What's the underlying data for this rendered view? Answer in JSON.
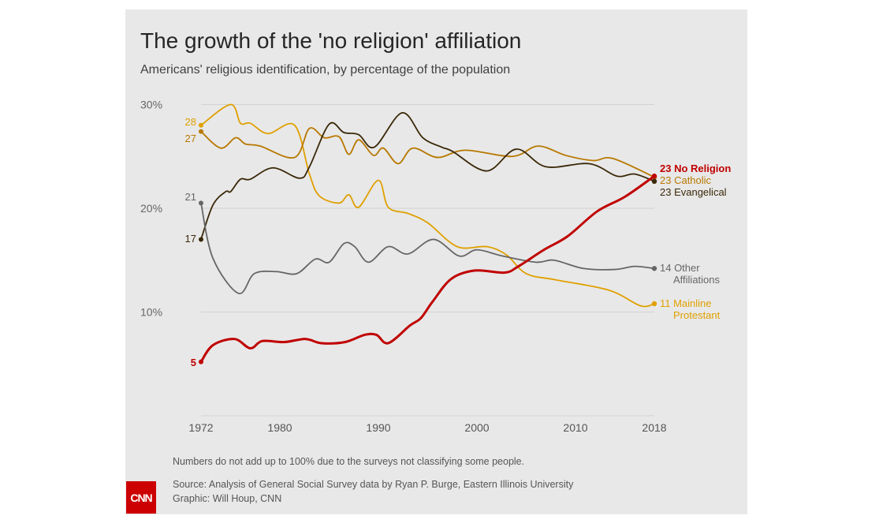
{
  "title": "The growth of the 'no religion' affiliation",
  "subtitle": "Americans' religious identification, by percentage of the population",
  "note": "Numbers do not add up to 100% due to the surveys not classifying some people.",
  "source": "Source: Analysis of General Social Survey data by Ryan P. Burge, Eastern Illinois University",
  "graphic": "Graphic: Will Houp, CNN",
  "logo": "CNN",
  "chart_data": {
    "type": "line",
    "title": "The growth of the 'no religion' affiliation",
    "xlim": [
      1972,
      2018
    ],
    "ylim": [
      0,
      30
    ],
    "x_ticks": [
      "1972",
      "1980",
      "1990",
      "2000",
      "2010",
      "2018"
    ],
    "y_ticks": [
      {
        "v": 10,
        "label": "10%"
      },
      {
        "v": 20,
        "label": "20%"
      },
      {
        "v": 30,
        "label": "30%"
      }
    ],
    "grid": true,
    "series": [
      {
        "name": "Mainline Protestant",
        "color": "#e0a000",
        "start_label": "28",
        "end_label": [
          "11 Mainline",
          "Protestant"
        ],
        "points": [
          [
            1972,
            28.0
          ],
          [
            1975,
            30.0
          ],
          [
            1976,
            28.2
          ],
          [
            1977,
            28.2
          ],
          [
            1978.8,
            27.2
          ],
          [
            1981.5,
            28.0
          ],
          [
            1983,
            23.3
          ],
          [
            1984,
            21.2
          ],
          [
            1986,
            20.5
          ],
          [
            1987,
            21.3
          ],
          [
            1988,
            20.1
          ],
          [
            1990,
            22.7
          ],
          [
            1991,
            20.1
          ],
          [
            1993,
            19.5
          ],
          [
            1995,
            18.6
          ],
          [
            1998,
            16.3
          ],
          [
            2001,
            16.3
          ],
          [
            2003,
            15.5
          ],
          [
            2005,
            13.7
          ],
          [
            2008,
            13.1
          ],
          [
            2013.4,
            12.1
          ],
          [
            2016.6,
            10.6
          ],
          [
            2018,
            10.8
          ]
        ]
      },
      {
        "name": "Catholic",
        "color": "#b87800",
        "start_label": "27",
        "end_label": [
          "23 Catholic"
        ],
        "points": [
          [
            1972,
            27.4
          ],
          [
            1974,
            25.8
          ],
          [
            1975.5,
            26.8
          ],
          [
            1976.5,
            26.2
          ],
          [
            1978,
            26.0
          ],
          [
            1981.5,
            24.9
          ],
          [
            1983,
            27.7
          ],
          [
            1984.5,
            26.8
          ],
          [
            1986,
            26.9
          ],
          [
            1987,
            25.2
          ],
          [
            1988,
            26.6
          ],
          [
            1989.5,
            25.1
          ],
          [
            1990.5,
            25.8
          ],
          [
            1992,
            24.3
          ],
          [
            1993.5,
            25.8
          ],
          [
            1996,
            24.9
          ],
          [
            1998.8,
            25.6
          ],
          [
            2003.6,
            25.0
          ],
          [
            2006.2,
            26.0
          ],
          [
            2009,
            25.1
          ],
          [
            2011.8,
            24.6
          ],
          [
            2013.8,
            24.8
          ],
          [
            2018,
            23.0
          ]
        ]
      },
      {
        "name": "Evangelical",
        "color": "#3a2808",
        "start_label": "17",
        "end_label": [
          "23 Evangelical"
        ],
        "points": [
          [
            1972,
            17.0
          ],
          [
            1973.2,
            20.3
          ],
          [
            1974.5,
            21.6
          ],
          [
            1975,
            21.6
          ],
          [
            1976,
            22.8
          ],
          [
            1977,
            22.8
          ],
          [
            1979.3,
            23.9
          ],
          [
            1982,
            22.9
          ],
          [
            1983,
            24.0
          ],
          [
            1985,
            28.1
          ],
          [
            1986.5,
            27.3
          ],
          [
            1988,
            27.1
          ],
          [
            1989.6,
            25.9
          ],
          [
            1992.4,
            29.2
          ],
          [
            1994.5,
            26.8
          ],
          [
            1996.4,
            25.9
          ],
          [
            1997.5,
            25.5
          ],
          [
            2001,
            23.6
          ],
          [
            2004,
            25.7
          ],
          [
            2007,
            24.0
          ],
          [
            2011.4,
            24.3
          ],
          [
            2014.2,
            23.1
          ],
          [
            2016,
            23.3
          ],
          [
            2018,
            22.6
          ]
        ]
      },
      {
        "name": "Other Affiliations",
        "color": "#666666",
        "start_label": "21",
        "end_label": [
          "14 Other",
          "Affiliations"
        ],
        "points": [
          [
            1972,
            20.5
          ],
          [
            1973.2,
            15.2
          ],
          [
            1975.8,
            11.8
          ],
          [
            1977.4,
            13.7
          ],
          [
            1979.6,
            13.9
          ],
          [
            1981.7,
            13.7
          ],
          [
            1983.6,
            15.1
          ],
          [
            1985,
            14.8
          ],
          [
            1986.5,
            16.6
          ],
          [
            1987.6,
            16.3
          ],
          [
            1989,
            14.8
          ],
          [
            1991,
            16.3
          ],
          [
            1993,
            15.6
          ],
          [
            1995.6,
            17.0
          ],
          [
            1998.2,
            15.4
          ],
          [
            2000,
            16.0
          ],
          [
            2002.6,
            15.4
          ],
          [
            2006,
            14.8
          ],
          [
            2007.8,
            15.0
          ],
          [
            2010.8,
            14.2
          ],
          [
            2014,
            14.1
          ],
          [
            2016,
            14.4
          ],
          [
            2018,
            14.2
          ]
        ]
      },
      {
        "name": "No Religion",
        "color": "#c00000",
        "start_label": "5",
        "end_label": [
          "23 No Religion"
        ],
        "points": [
          [
            1972,
            5.2
          ],
          [
            1973.2,
            6.8
          ],
          [
            1975.4,
            7.4
          ],
          [
            1977,
            6.5
          ],
          [
            1978.2,
            7.2
          ],
          [
            1980.4,
            7.1
          ],
          [
            1982.6,
            7.4
          ],
          [
            1984.2,
            7.0
          ],
          [
            1986.6,
            7.1
          ],
          [
            1988.6,
            7.8
          ],
          [
            1989.8,
            7.8
          ],
          [
            1991,
            7.0
          ],
          [
            1993.2,
            8.7
          ],
          [
            1994.3,
            9.4
          ],
          [
            1995.5,
            11.0
          ],
          [
            1997.4,
            13.2
          ],
          [
            1999.8,
            14.0
          ],
          [
            2002.8,
            13.8
          ],
          [
            2004.2,
            14.4
          ],
          [
            2006.8,
            16.0
          ],
          [
            2009.2,
            17.3
          ],
          [
            2012.2,
            19.7
          ],
          [
            2015,
            21.1
          ],
          [
            2018,
            23.1
          ]
        ]
      }
    ]
  }
}
